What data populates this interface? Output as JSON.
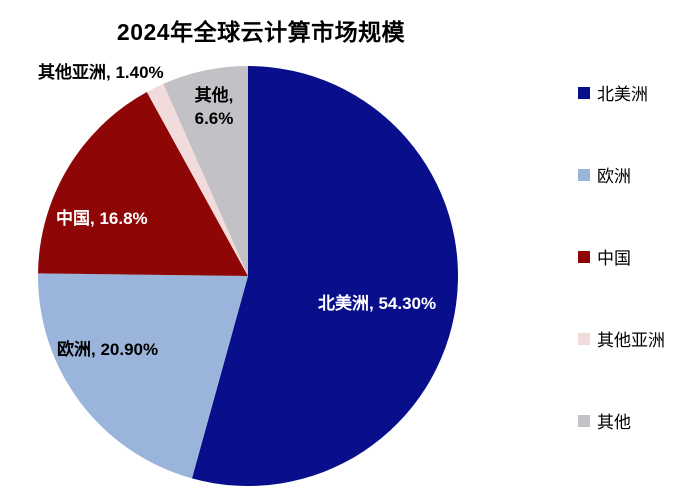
{
  "chart_data": {
    "type": "pie",
    "title": "2024年全球云计算市场规模",
    "legend_position": "right",
    "start_angle_deg": 0,
    "direction": "clockwise",
    "slices": [
      {
        "key": "north-america",
        "name": "北美洲",
        "value": 54.3,
        "label": "北美洲, 54.30%",
        "color": "#090E8B",
        "label_color": "#FFFFFF"
      },
      {
        "key": "europe",
        "name": "欧洲",
        "value": 20.9,
        "label": "欧洲, 20.90%",
        "color": "#9AB4DB",
        "label_color": "#000000"
      },
      {
        "key": "china",
        "name": "中国",
        "value": 16.8,
        "label": "中国, 16.8%",
        "color": "#8E0606",
        "label_color": "#FFFFFF"
      },
      {
        "key": "other-asia",
        "name": "其他亚洲",
        "value": 1.4,
        "label": "其他亚洲, 1.40%",
        "color": "#F2DCDB",
        "label_color": "#000000"
      },
      {
        "key": "other",
        "name": "其他",
        "value": 6.6,
        "label": "其他,\n6.6%",
        "color": "#C2C2C6",
        "label_color": "#000000"
      }
    ]
  }
}
